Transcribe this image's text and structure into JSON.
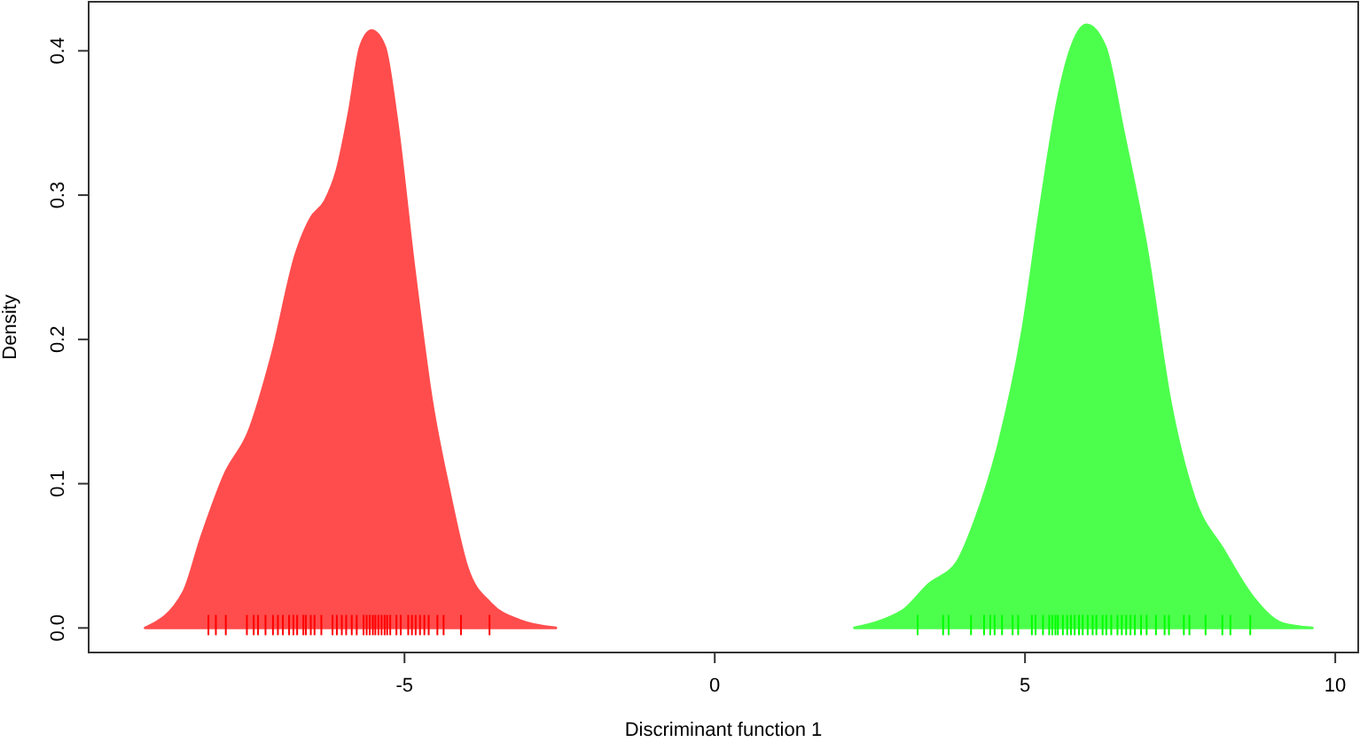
{
  "chart_data": {
    "type": "area",
    "xlabel": "Discriminant function 1",
    "ylabel": "Density",
    "xlim": [
      -10.09,
      10.37
    ],
    "ylim": [
      -0.017,
      0.434
    ],
    "xticks": [
      -5,
      0,
      5,
      10
    ],
    "yticks": [
      {
        "value": 0,
        "label": "0.0"
      },
      0.1,
      0.2,
      0.3,
      0.4
    ],
    "series": [
      {
        "color": "#ff4d4d",
        "x": [
          -9.18,
          -8.56,
          -8.28,
          -7.89,
          -7.51,
          -7.13,
          -6.75,
          -6.51,
          -6.28,
          -6.09,
          -5.89,
          -5.71,
          -5.53,
          -5.32,
          -5.13,
          -4.85,
          -4.56,
          -4.28,
          -3.99,
          -3.61,
          -3.13,
          -2.56
        ],
        "values": [
          0,
          0.025,
          0.062,
          0.107,
          0.136,
          0.19,
          0.259,
          0.284,
          0.296,
          0.317,
          0.358,
          0.403,
          0.414,
          0.403,
          0.354,
          0.251,
          0.157,
          0.095,
          0.042,
          0.017,
          0.005,
          0
        ]
      },
      {
        "color": "#4dff4d",
        "x": [
          2.25,
          2.68,
          3.06,
          3.44,
          3.91,
          4.2,
          4.58,
          4.96,
          5.25,
          5.53,
          5.72,
          5.99,
          6.29,
          6.58,
          6.96,
          7.34,
          7.72,
          8.2,
          8.68,
          9.15,
          9.63
        ],
        "values": [
          0,
          0.005,
          0.013,
          0.03,
          0.046,
          0.075,
          0.128,
          0.206,
          0.292,
          0.366,
          0.399,
          0.418,
          0.403,
          0.345,
          0.263,
          0.157,
          0.091,
          0.054,
          0.021,
          0.003,
          0
        ]
      },
      {
        "type": "bar",
        "color": "#ff0000",
        "x": [
          -8.16,
          -8.04,
          -7.88,
          -7.54,
          -7.43,
          -7.36,
          -7.24,
          -7.12,
          -7.04,
          -6.96,
          -6.86,
          -6.79,
          -6.73,
          -6.63,
          -6.59,
          -6.51,
          -6.45,
          -6.34,
          -6.16,
          -6.09,
          -6.01,
          -5.94,
          -5.85,
          -5.77,
          -5.66,
          -5.61,
          -5.56,
          -5.51,
          -5.47,
          -5.42,
          -5.37,
          -5.32,
          -5.28,
          -5.23,
          -5.13,
          -5.06,
          -4.94,
          -4.88,
          -4.82,
          -4.75,
          -4.68,
          -4.61,
          -4.47,
          -4.37,
          -4.09,
          -3.63
        ],
        "base": [
          -0.005,
          -0.005,
          -0.005,
          -0.005,
          -0.005,
          -0.005,
          -0.005,
          -0.005,
          -0.005,
          -0.005,
          -0.005,
          -0.005,
          -0.005,
          -0.005,
          -0.005,
          -0.005,
          -0.005,
          -0.005,
          -0.005,
          -0.005,
          -0.005,
          -0.005,
          -0.005,
          -0.005,
          -0.005,
          -0.005,
          -0.005,
          -0.005,
          -0.005,
          -0.005,
          -0.005,
          -0.005,
          -0.005,
          -0.005,
          -0.005,
          -0.005,
          -0.005,
          -0.005,
          -0.005,
          -0.005,
          -0.005,
          -0.005,
          -0.005,
          -0.005,
          -0.005,
          -0.005
        ],
        "values": [
          0.014,
          0.014,
          0.014,
          0.014,
          0.014,
          0.014,
          0.014,
          0.014,
          0.014,
          0.014,
          0.014,
          0.014,
          0.014,
          0.014,
          0.014,
          0.014,
          0.014,
          0.014,
          0.014,
          0.014,
          0.014,
          0.014,
          0.014,
          0.014,
          0.014,
          0.014,
          0.014,
          0.014,
          0.014,
          0.014,
          0.014,
          0.014,
          0.014,
          0.014,
          0.014,
          0.014,
          0.014,
          0.014,
          0.014,
          0.014,
          0.014,
          0.014,
          0.014,
          0.014,
          0.014,
          0.014
        ]
      },
      {
        "type": "bar",
        "color": "#00ff00",
        "x": [
          3.27,
          3.68,
          3.77,
          4.13,
          4.34,
          4.44,
          4.51,
          4.63,
          4.8,
          4.89,
          5.11,
          5.17,
          5.29,
          5.39,
          5.44,
          5.49,
          5.53,
          5.61,
          5.68,
          5.74,
          5.8,
          5.87,
          5.93,
          6.01,
          6.09,
          6.15,
          6.25,
          6.31,
          6.39,
          6.49,
          6.56,
          6.63,
          6.7,
          6.77,
          6.87,
          6.96,
          7.11,
          7.25,
          7.32,
          7.56,
          7.65,
          7.91,
          8.18,
          8.31,
          8.63
        ],
        "base": [
          -0.005,
          -0.005,
          -0.005,
          -0.005,
          -0.005,
          -0.005,
          -0.005,
          -0.005,
          -0.005,
          -0.005,
          -0.005,
          -0.005,
          -0.005,
          -0.005,
          -0.005,
          -0.005,
          -0.005,
          -0.005,
          -0.005,
          -0.005,
          -0.005,
          -0.005,
          -0.005,
          -0.005,
          -0.005,
          -0.005,
          -0.005,
          -0.005,
          -0.005,
          -0.005,
          -0.005,
          -0.005,
          -0.005,
          -0.005,
          -0.005,
          -0.005,
          -0.005,
          -0.005,
          -0.005,
          -0.005,
          -0.005,
          -0.005,
          -0.005,
          -0.005,
          -0.005
        ],
        "values": [
          0.014,
          0.014,
          0.014,
          0.014,
          0.014,
          0.014,
          0.014,
          0.014,
          0.014,
          0.014,
          0.014,
          0.014,
          0.014,
          0.014,
          0.014,
          0.014,
          0.014,
          0.014,
          0.014,
          0.014,
          0.014,
          0.014,
          0.014,
          0.014,
          0.014,
          0.014,
          0.014,
          0.014,
          0.014,
          0.014,
          0.014,
          0.014,
          0.014,
          0.014,
          0.014,
          0.014,
          0.014,
          0.014,
          0.014,
          0.014,
          0.014,
          0.014,
          0.014,
          0.014,
          0.014
        ]
      }
    ]
  }
}
